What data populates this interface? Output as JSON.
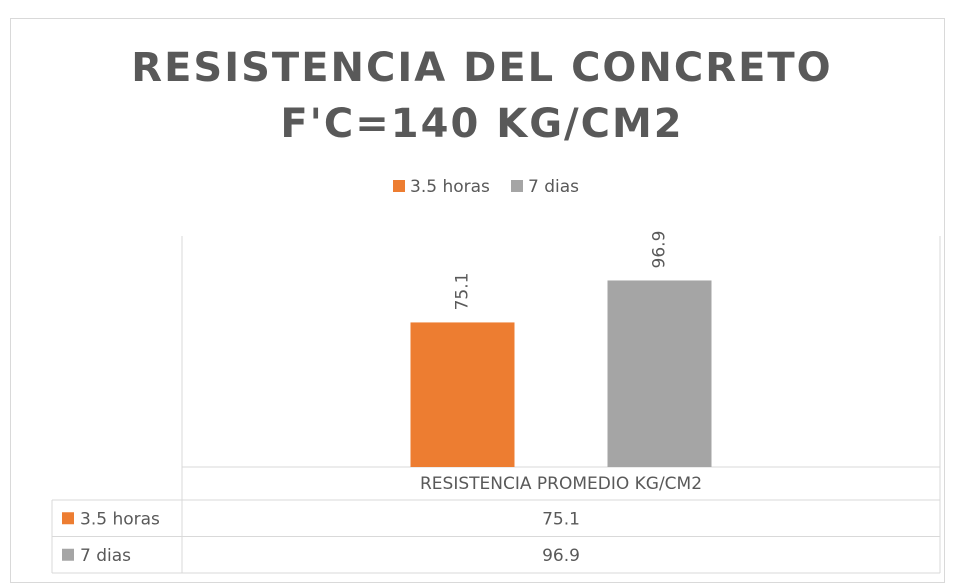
{
  "chart_data": {
    "type": "bar",
    "title": "RESISTENCIA DEL CONCRETO\nF'C=140 KG/CM2",
    "categories": [
      "RESISTENCIA PROMEDIO KG/CM2"
    ],
    "series": [
      {
        "name": "3.5 horas",
        "color": "#ed7d31",
        "values": [
          75.1
        ]
      },
      {
        "name": "7 dias",
        "color": "#a5a5a5",
        "values": [
          96.9
        ]
      }
    ],
    "ylim": [
      0,
      120
    ],
    "legend": "top",
    "data_table": true
  }
}
